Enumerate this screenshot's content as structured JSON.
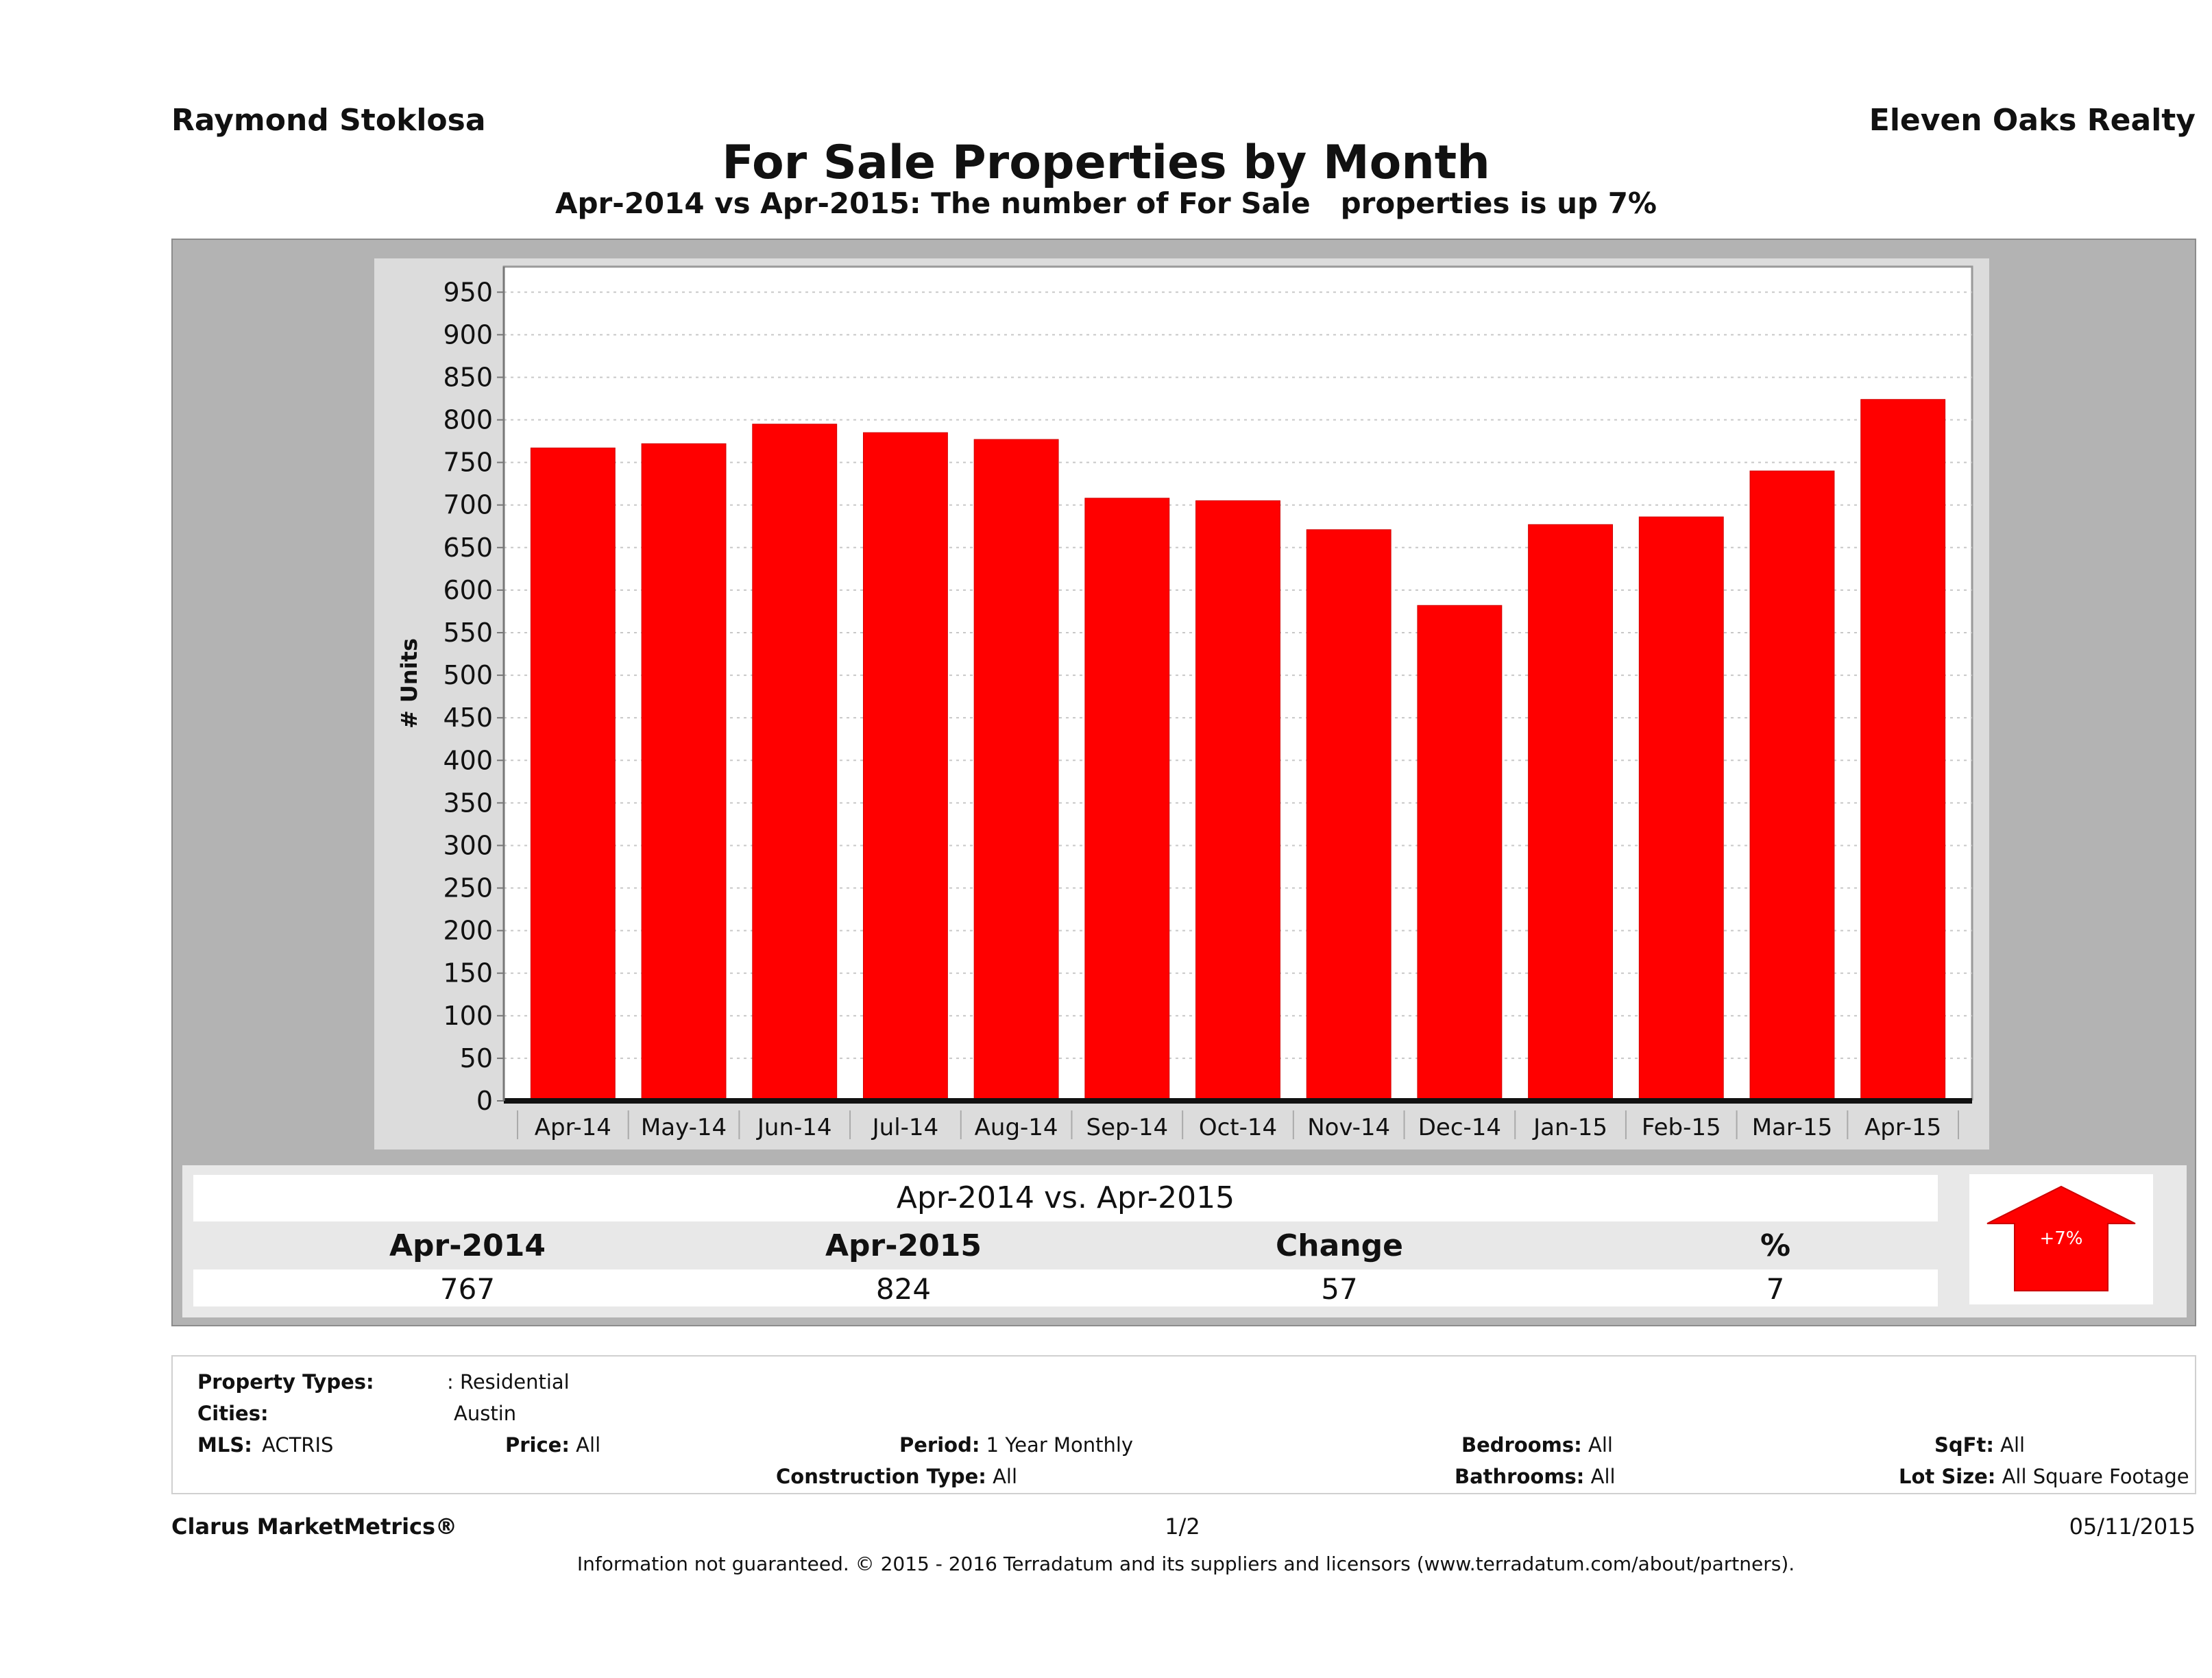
{
  "header": {
    "agent_name": "Raymond Stoklosa",
    "company_name": "Eleven Oaks Realty",
    "title": "For Sale Properties by Month",
    "subtitle": "Apr-2014 vs Apr-2015: The number of For Sale   properties is up 7%"
  },
  "colors": {
    "bar": "#ff0000",
    "panel": "#b3b3b3",
    "chart_background": "#dcdcdc",
    "plot_background": "#ffffff",
    "summary_background": "#e8e8e8"
  },
  "chart_data": {
    "type": "bar",
    "title": "For Sale Properties by Month",
    "xlabel": "",
    "ylabel": "# Units",
    "categories": [
      "Apr-14",
      "May-14",
      "Jun-14",
      "Jul-14",
      "Aug-14",
      "Sep-14",
      "Oct-14",
      "Nov-14",
      "Dec-14",
      "Jan-15",
      "Feb-15",
      "Mar-15",
      "Apr-15"
    ],
    "values": [
      767,
      772,
      795,
      785,
      777,
      708,
      705,
      671,
      582,
      677,
      686,
      740,
      824
    ],
    "ylim": [
      0,
      980
    ],
    "yticks": [
      0,
      50,
      100,
      150,
      200,
      250,
      300,
      350,
      400,
      450,
      500,
      550,
      600,
      650,
      700,
      750,
      800,
      850,
      900,
      950
    ],
    "grid": true,
    "legend": "none"
  },
  "summary": {
    "title": "Apr-2014 vs. Apr-2015",
    "headers": [
      "Apr-2014",
      "Apr-2015",
      "Change",
      "%"
    ],
    "values": [
      "767",
      "824",
      "57",
      "7"
    ],
    "arrow_direction": "up",
    "arrow_label": "+7%"
  },
  "filters": {
    "property_types_label": "Property Types:",
    "property_types_value": ": Residential",
    "cities_label": "Cities:",
    "cities_value": "Austin",
    "mls_label": "MLS:",
    "mls_value": "ACTRIS",
    "price_label": "Price:",
    "price_value": "All",
    "period_label": "Period:",
    "period_value": "1 Year Monthly",
    "construction_label": "Construction Type:",
    "construction_value": "All",
    "bedrooms_label": "Bedrooms:",
    "bedrooms_value": "All",
    "bathrooms_label": "Bathrooms:",
    "bathrooms_value": "All",
    "sqft_label": "SqFt:",
    "sqft_value": "All",
    "lotsize_label": "Lot Size:",
    "lotsize_value": "All Square Footage"
  },
  "footer": {
    "brand": "Clarus MarketMetrics®",
    "page": "1/2",
    "date": "05/11/2015",
    "disclaimer": "Information not guaranteed. © 2015 - 2016 Terradatum and its suppliers and licensors (www.terradatum.com/about/partners)."
  }
}
